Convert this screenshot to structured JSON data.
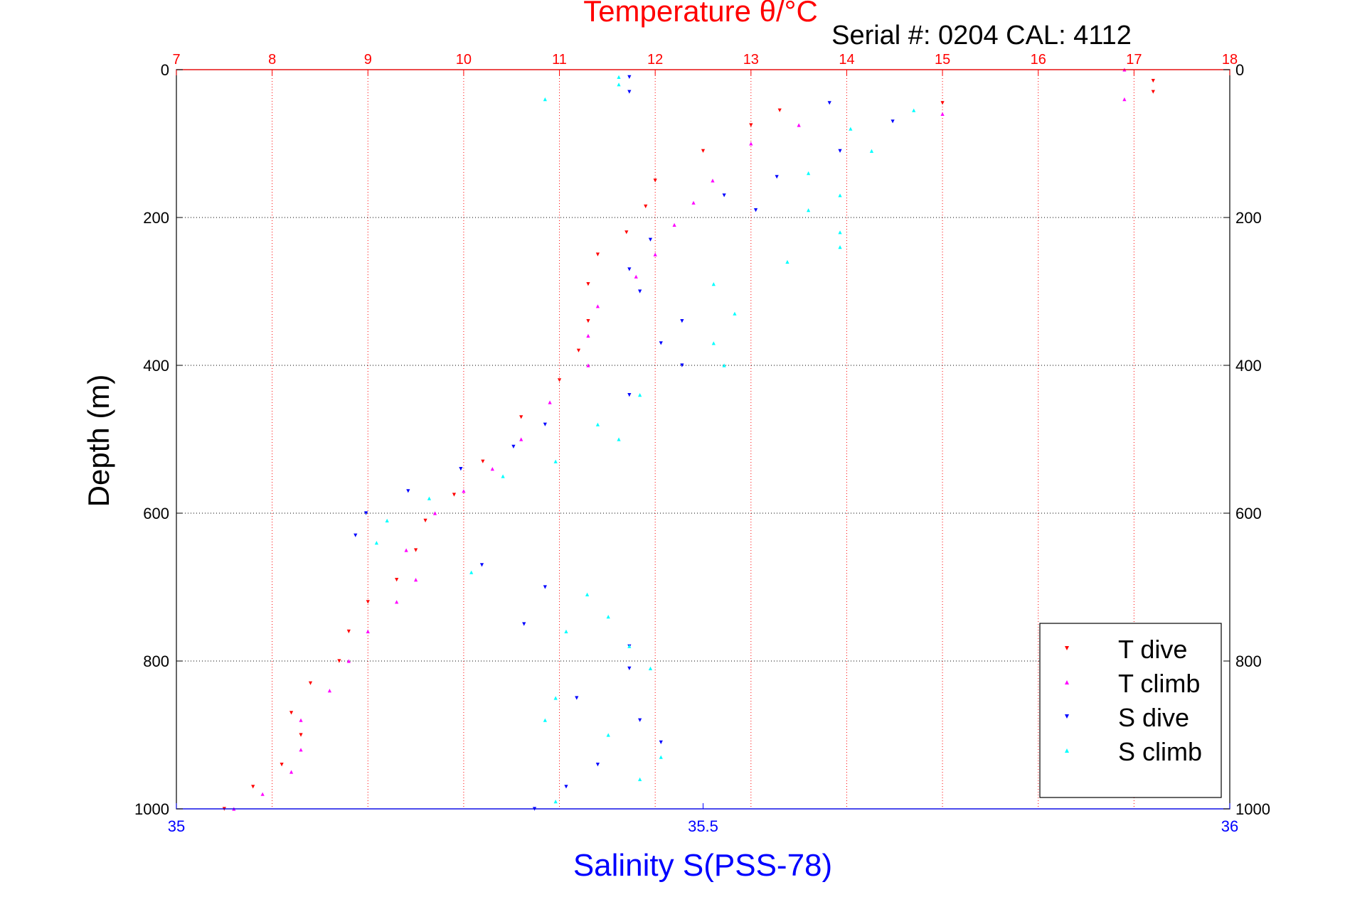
{
  "chart_data": {
    "type": "scatter",
    "title": "Temperature θ/°C",
    "subtitle": "Serial #: 0204  CAL: 4112",
    "ylabel": "Depth (m)",
    "xlabel_bottom": "Salinity S(PSS-78)",
    "y_axis": {
      "range": [
        0,
        1000
      ],
      "reversed": true,
      "ticks": [
        "0",
        "200",
        "400",
        "600",
        "800",
        "1000"
      ]
    },
    "x_top": {
      "quantity": "Temperature",
      "range": [
        7,
        18
      ],
      "ticks": [
        "7",
        "8",
        "9",
        "10",
        "11",
        "12",
        "13",
        "14",
        "15",
        "16",
        "17",
        "18"
      ],
      "color": "#ff0000"
    },
    "x_bottom": {
      "quantity": "Salinity",
      "range": [
        35,
        36
      ],
      "ticks": [
        "35",
        "35.5",
        "36"
      ],
      "color": "#0000ff"
    },
    "grid": true,
    "legend_position": "bottom-right",
    "series": [
      {
        "name": "T dive",
        "axis": "top",
        "color": "#ff0000",
        "marker": "triangle-down",
        "points": [
          [
            17.2,
            15
          ],
          [
            17.2,
            30
          ],
          [
            15.0,
            45
          ],
          [
            13.3,
            55
          ],
          [
            13.0,
            75
          ],
          [
            12.5,
            110
          ],
          [
            12.0,
            150
          ],
          [
            11.9,
            185
          ],
          [
            11.7,
            220
          ],
          [
            11.4,
            250
          ],
          [
            11.3,
            290
          ],
          [
            11.3,
            340
          ],
          [
            11.2,
            380
          ],
          [
            11.0,
            420
          ],
          [
            10.6,
            470
          ],
          [
            10.2,
            530
          ],
          [
            9.9,
            575
          ],
          [
            9.6,
            610
          ],
          [
            9.5,
            650
          ],
          [
            9.3,
            690
          ],
          [
            9.0,
            720
          ],
          [
            8.8,
            760
          ],
          [
            8.7,
            800
          ],
          [
            8.4,
            830
          ],
          [
            8.2,
            870
          ],
          [
            8.3,
            900
          ],
          [
            8.1,
            940
          ],
          [
            7.8,
            970
          ],
          [
            7.5,
            1000
          ]
        ]
      },
      {
        "name": "T climb",
        "axis": "top",
        "color": "#ff00ff",
        "marker": "triangle-up",
        "points": [
          [
            16.9,
            0
          ],
          [
            16.9,
            40
          ],
          [
            15.0,
            60
          ],
          [
            13.5,
            75
          ],
          [
            13.0,
            100
          ],
          [
            12.6,
            150
          ],
          [
            12.4,
            180
          ],
          [
            12.2,
            210
          ],
          [
            12.0,
            250
          ],
          [
            11.8,
            280
          ],
          [
            11.4,
            320
          ],
          [
            11.3,
            360
          ],
          [
            11.3,
            400
          ],
          [
            10.9,
            450
          ],
          [
            10.6,
            500
          ],
          [
            10.3,
            540
          ],
          [
            10.0,
            570
          ],
          [
            9.7,
            600
          ],
          [
            9.4,
            650
          ],
          [
            9.5,
            690
          ],
          [
            9.3,
            720
          ],
          [
            9.0,
            760
          ],
          [
            8.8,
            800
          ],
          [
            8.6,
            840
          ],
          [
            8.3,
            880
          ],
          [
            8.3,
            920
          ],
          [
            8.2,
            950
          ],
          [
            7.9,
            980
          ],
          [
            7.6,
            1000
          ]
        ]
      },
      {
        "name": "S dive",
        "axis": "bottom",
        "color": "#0000ff",
        "marker": "triangle-down",
        "points": [
          [
            35.43,
            10
          ],
          [
            35.43,
            30
          ],
          [
            35.62,
            45
          ],
          [
            35.68,
            70
          ],
          [
            35.63,
            110
          ],
          [
            35.57,
            145
          ],
          [
            35.52,
            170
          ],
          [
            35.55,
            190
          ],
          [
            35.45,
            230
          ],
          [
            35.43,
            270
          ],
          [
            35.44,
            300
          ],
          [
            35.48,
            340
          ],
          [
            35.46,
            370
          ],
          [
            35.48,
            400
          ],
          [
            35.43,
            440
          ],
          [
            35.35,
            480
          ],
          [
            35.32,
            510
          ],
          [
            35.27,
            540
          ],
          [
            35.22,
            570
          ],
          [
            35.18,
            600
          ],
          [
            35.17,
            630
          ],
          [
            35.29,
            670
          ],
          [
            35.35,
            700
          ],
          [
            35.33,
            750
          ],
          [
            35.43,
            780
          ],
          [
            35.43,
            810
          ],
          [
            35.38,
            850
          ],
          [
            35.44,
            880
          ],
          [
            35.46,
            910
          ],
          [
            35.4,
            940
          ],
          [
            35.37,
            970
          ],
          [
            35.34,
            1000
          ]
        ]
      },
      {
        "name": "S climb",
        "axis": "bottom",
        "color": "#00ffff",
        "marker": "triangle-up",
        "points": [
          [
            35.42,
            10
          ],
          [
            35.42,
            20
          ],
          [
            35.35,
            40
          ],
          [
            35.7,
            55
          ],
          [
            35.64,
            80
          ],
          [
            35.66,
            110
          ],
          [
            35.6,
            140
          ],
          [
            35.63,
            170
          ],
          [
            35.6,
            190
          ],
          [
            35.63,
            220
          ],
          [
            35.63,
            240
          ],
          [
            35.58,
            260
          ],
          [
            35.51,
            290
          ],
          [
            35.53,
            330
          ],
          [
            35.51,
            370
          ],
          [
            35.52,
            400
          ],
          [
            35.44,
            440
          ],
          [
            35.4,
            480
          ],
          [
            35.42,
            500
          ],
          [
            35.36,
            530
          ],
          [
            35.31,
            550
          ],
          [
            35.24,
            580
          ],
          [
            35.2,
            610
          ],
          [
            35.19,
            640
          ],
          [
            35.28,
            680
          ],
          [
            35.39,
            710
          ],
          [
            35.41,
            740
          ],
          [
            35.37,
            760
          ],
          [
            35.43,
            780
          ],
          [
            35.45,
            810
          ],
          [
            35.36,
            850
          ],
          [
            35.35,
            880
          ],
          [
            35.41,
            900
          ],
          [
            35.46,
            930
          ],
          [
            35.44,
            960
          ],
          [
            35.36,
            990
          ]
        ]
      }
    ]
  }
}
